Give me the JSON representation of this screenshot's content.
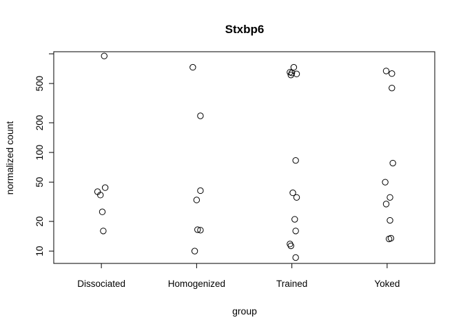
{
  "chart_data": {
    "type": "scatter",
    "title": "Stxbp6",
    "xlabel": "group",
    "ylabel": "normalized count",
    "y_scale": "log",
    "ylim": [
      7.5,
      1050
    ],
    "categories": [
      "Dissociated",
      "Homogenized",
      "Trained",
      "Yoked"
    ],
    "y_ticks": [
      10,
      20,
      50,
      100,
      200,
      500
    ],
    "series": [
      {
        "category": "Dissociated",
        "points": [
          {
            "x": 1.03,
            "y": 950
          },
          {
            "x": 0.96,
            "y": 40
          },
          {
            "x": 1.04,
            "y": 44
          },
          {
            "x": 0.99,
            "y": 37
          },
          {
            "x": 1.01,
            "y": 25
          },
          {
            "x": 1.02,
            "y": 16
          }
        ]
      },
      {
        "category": "Homogenized",
        "points": [
          {
            "x": 1.96,
            "y": 730
          },
          {
            "x": 2.04,
            "y": 235
          },
          {
            "x": 2.04,
            "y": 41
          },
          {
            "x": 2.0,
            "y": 33
          },
          {
            "x": 2.01,
            "y": 16.5
          },
          {
            "x": 2.04,
            "y": 16.3
          },
          {
            "x": 1.98,
            "y": 10
          }
        ]
      },
      {
        "category": "Trained",
        "points": [
          {
            "x": 3.02,
            "y": 730
          },
          {
            "x": 2.98,
            "y": 650
          },
          {
            "x": 3.0,
            "y": 640
          },
          {
            "x": 3.05,
            "y": 625
          },
          {
            "x": 2.99,
            "y": 610
          },
          {
            "x": 3.04,
            "y": 83
          },
          {
            "x": 3.01,
            "y": 39
          },
          {
            "x": 3.05,
            "y": 35
          },
          {
            "x": 3.03,
            "y": 21
          },
          {
            "x": 3.04,
            "y": 16
          },
          {
            "x": 2.98,
            "y": 11.8
          },
          {
            "x": 2.99,
            "y": 11.3
          },
          {
            "x": 3.04,
            "y": 8.6
          }
        ]
      },
      {
        "category": "Yoked",
        "points": [
          {
            "x": 3.99,
            "y": 670
          },
          {
            "x": 4.05,
            "y": 630
          },
          {
            "x": 4.05,
            "y": 450
          },
          {
            "x": 4.06,
            "y": 78
          },
          {
            "x": 3.98,
            "y": 50
          },
          {
            "x": 4.03,
            "y": 35
          },
          {
            "x": 3.99,
            "y": 30
          },
          {
            "x": 4.03,
            "y": 20.5
          },
          {
            "x": 4.04,
            "y": 13.5
          },
          {
            "x": 4.02,
            "y": 13.3
          }
        ]
      }
    ]
  }
}
